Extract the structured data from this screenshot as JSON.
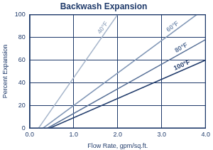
{
  "chart_data": {
    "type": "line",
    "title": "Backwash Expansion",
    "x_label": "Flow Rate, gpm/sq.ft.",
    "y_label": "Percent Expansion",
    "series": [
      {
        "name": "40°F",
        "color": "#a7b6cb",
        "x": [
          0.2,
          2.0
        ],
        "values": [
          0,
          100
        ]
      },
      {
        "name": "60°F",
        "color": "#8197b6",
        "x": [
          0.3,
          3.8
        ],
        "values": [
          0,
          100
        ]
      },
      {
        "name": "80°F",
        "color": "#566f96",
        "x": [
          0.4,
          4.0
        ],
        "values": [
          0,
          78
        ]
      },
      {
        "name": "100°F",
        "color": "#1f3a6a",
        "x": [
          0.45,
          4.0
        ],
        "values": [
          0,
          60
        ]
      }
    ],
    "xlim": [
      0,
      4
    ],
    "xticks": [
      {
        "value": 0,
        "label": "0.0"
      },
      {
        "value": 1,
        "label": "1.0"
      },
      {
        "value": 2,
        "label": "2.0"
      },
      {
        "value": 3,
        "label": "3.0"
      },
      {
        "value": 4,
        "label": "4.0"
      }
    ],
    "ylim": [
      0,
      100
    ],
    "yticks": [
      0,
      20,
      40,
      60,
      80,
      100
    ],
    "grid": true
  }
}
